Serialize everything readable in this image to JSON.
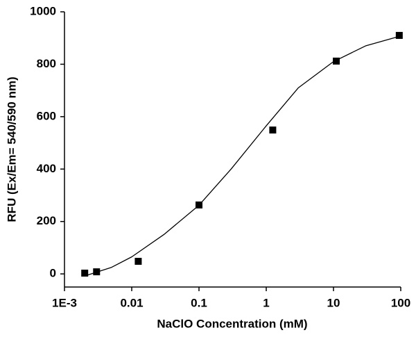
{
  "chart_data": {
    "type": "scatter",
    "x_label": "NaClO Concentration (mM)",
    "y_label": "RFU (Ex/Em= 540/590 nm)",
    "x_scale": "log",
    "xlim": [
      0.001,
      100
    ],
    "xticks": [
      {
        "value": 0.001,
        "label": "1E-3"
      },
      0.01,
      0.1,
      1,
      10,
      100
    ],
    "ylim": [
      -50,
      1000
    ],
    "yticks": [
      0,
      200,
      400,
      600,
      800,
      1000
    ],
    "series": [
      {
        "type": "scatter",
        "color": "#000000",
        "x": [
          0.002,
          0.003,
          0.0125,
          0.1,
          1.25,
          11,
          95
        ],
        "values": [
          3,
          8,
          48,
          263,
          549,
          812,
          910
        ]
      },
      {
        "type": "line",
        "color": "#000000",
        "x": [
          0.002,
          0.005,
          0.01,
          0.03,
          0.1,
          0.3,
          1,
          3,
          10,
          30,
          100
        ],
        "values": [
          -8,
          25,
          65,
          150,
          262,
          400,
          565,
          710,
          810,
          870,
          908
        ]
      }
    ]
  }
}
